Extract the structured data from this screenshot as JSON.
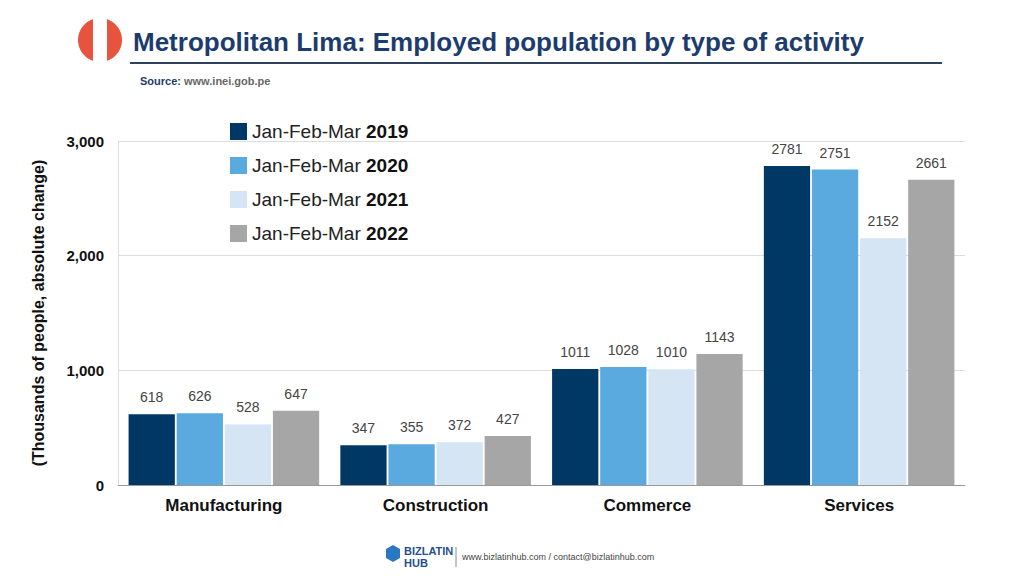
{
  "chart_data": {
    "type": "bar",
    "title": "Metropolitan Lima: Employed population by type of activity",
    "subtitle": "Source: www.inei.gob.pe",
    "y_label": "(Thousands of people, absolute change)",
    "categories": [
      "Manufacturing",
      "Construction",
      "Commerce",
      "Services"
    ],
    "series": [
      {
        "name": "Jan-Feb-Mar 2019",
        "color": "#003865",
        "values": [
          618,
          347,
          1011,
          2781
        ]
      },
      {
        "name": "Jan-Feb-Mar 2020",
        "color": "#5aa9df",
        "values": [
          626,
          355,
          1028,
          2751
        ]
      },
      {
        "name": "Jan-Feb-Mar 2021",
        "color": "#d5e5f4",
        "values": [
          528,
          372,
          1010,
          2152
        ]
      },
      {
        "name": "Jan-Feb-Mar 2022",
        "color": "#a6a6a6",
        "values": [
          647,
          427,
          1143,
          2661
        ]
      }
    ],
    "ylim": [
      0,
      3000
    ],
    "yticks": [
      0,
      1000,
      2000,
      3000
    ],
    "grid": true,
    "legend": "upper left",
    "data_labels": true,
    "annotations": [
      "BIZLATIN HUB",
      "www.bizlatinhub.com / contact@bizlatinhub.com"
    ]
  }
}
